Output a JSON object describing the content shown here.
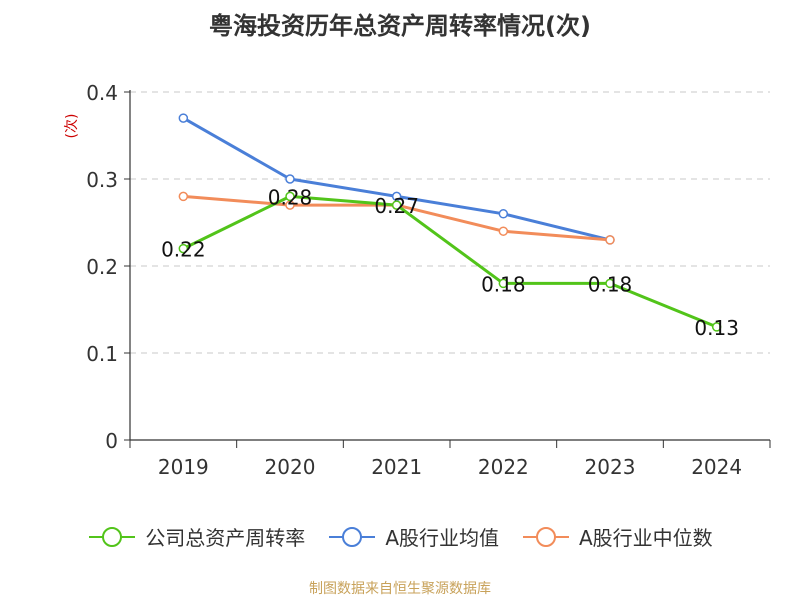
{
  "chart_data": {
    "type": "line",
    "title": "粤海投资历年总资产周转率情况(次)",
    "ylabel": "(次)",
    "categories": [
      "2019",
      "2020",
      "2021",
      "2022",
      "2023",
      "2024"
    ],
    "ylim": [
      0,
      0.4
    ],
    "yticks": [
      0,
      0.1,
      0.2,
      0.3,
      0.4
    ],
    "ytick_labels": [
      "0",
      "0.1",
      "0.2",
      "0.3",
      "0.4"
    ],
    "grid": true,
    "legend_position": "bottom",
    "series": [
      {
        "name": "公司总资产周转率",
        "color": "#52c41a",
        "values": [
          0.22,
          0.28,
          0.27,
          0.18,
          0.18,
          0.13
        ],
        "data_labels": [
          "0.22",
          "0.28",
          "0.27",
          "0.18",
          "0.18",
          "0.13"
        ]
      },
      {
        "name": "A股行业均值",
        "color": "#4a7fd8",
        "values": [
          0.37,
          0.3,
          0.28,
          0.26,
          0.23,
          null
        ]
      },
      {
        "name": "A股行业中位数",
        "color": "#f28c5a",
        "values": [
          0.28,
          0.27,
          0.27,
          0.24,
          0.23,
          null
        ]
      }
    ]
  },
  "footer": {
    "source": "制图数据来自恒生聚源数据库",
    "source_color": "#c8a25a",
    "ylabel_color": "#cc0000"
  }
}
